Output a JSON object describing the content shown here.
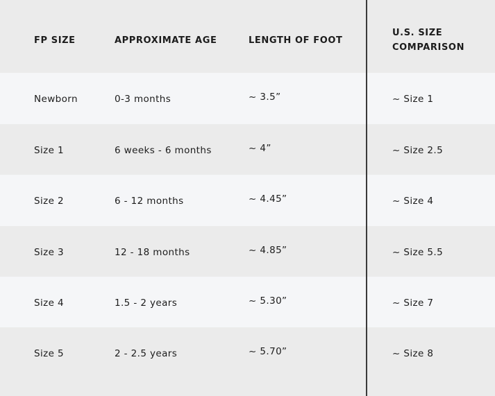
{
  "headers": [
    "FP SIZE",
    "APPROXIMATE AGE",
    "LENGTH OF FOOT",
    "U.S. SIZE COMPARISON"
  ],
  "rows": [
    [
      "Newborn",
      "0-3 months",
      "~ 3.5”",
      "~ Size 1"
    ],
    [
      "Size 1",
      "6 weeks - 6 months",
      "~ 4”",
      "~ Size 2.5"
    ],
    [
      "Size 2",
      "6 - 12 months",
      "~ 4.45”",
      "~ Size 4"
    ],
    [
      "Size 3",
      "12 - 18 months",
      "~ 4.85”",
      "~ Size 5.5"
    ],
    [
      "Size 4",
      "1.5 - 2 years",
      "~ 5.30”",
      "~ Size 7"
    ],
    [
      "Size 5",
      "2 - 2.5 years",
      "~ 5.70”",
      "~ Size 8"
    ]
  ]
}
